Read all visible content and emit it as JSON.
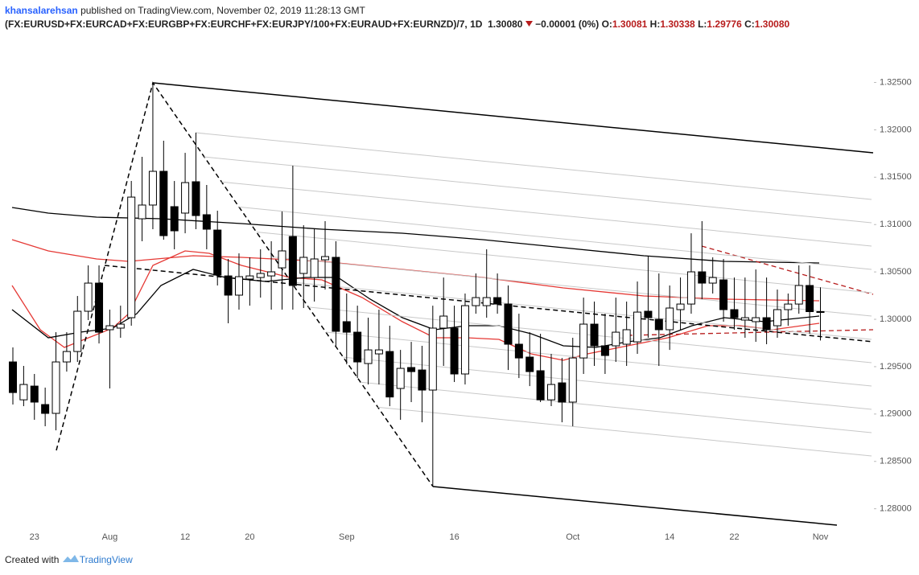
{
  "header": {
    "author": "khansalarehsan",
    "published": "published on TradingView.com, November 02, 2019 11:28:13 GMT",
    "symbol": "(FX:EURUSD+FX:EURCAD+FX:EURGBP+FX:EURCHF+FX:EURJPY/100+FX:EURAUD+FX:EURNZD)/7, 1D",
    "last": "1.30080",
    "change": "−0.00001 (0%)",
    "ohlc": [
      {
        "label": "O:",
        "value": "1.30081"
      },
      {
        "label": "H:",
        "value": "1.30338"
      },
      {
        "label": "L:",
        "value": "1.29776"
      },
      {
        "label": "C:",
        "value": "1.30080"
      }
    ]
  },
  "chart_data": {
    "type": "candlestick",
    "categories": [
      null,
      null,
      "23",
      null,
      null,
      null,
      null,
      null,
      null,
      "Aug",
      null,
      null,
      null,
      null,
      null,
      null,
      "12",
      null,
      null,
      null,
      null,
      null,
      "20",
      null,
      null,
      null,
      null,
      null,
      null,
      null,
      null,
      "Sep",
      null,
      null,
      null,
      null,
      null,
      null,
      null,
      null,
      null,
      "16",
      null,
      null,
      null,
      null,
      null,
      null,
      null,
      null,
      null,
      null,
      "Oct",
      null,
      null,
      null,
      null,
      null,
      null,
      null,
      null,
      "14",
      null,
      null,
      null,
      null,
      null,
      "22",
      null,
      null,
      null,
      null,
      null,
      null,
      null,
      "Nov"
    ],
    "open": [
      1.2955,
      1.2915,
      1.29295,
      1.291,
      1.29007,
      1.2955,
      1.2966,
      1.30085,
      1.30382,
      1.2989,
      1.29907,
      1.30017,
      1.31061,
      1.31206,
      1.31562,
      1.31189,
      1.31121,
      1.31452,
      1.31104,
      1.30942,
      1.30458,
      1.30255,
      1.30425,
      1.30441,
      1.30458,
      1.30543,
      1.30874,
      1.30484,
      1.30441,
      1.30628,
      1.30654,
      1.29975,
      1.29864,
      1.29533,
      1.29635,
      1.2966,
      1.2927,
      1.29491,
      1.29465,
      1.29253,
      1.29907,
      1.29907,
      1.29423,
      1.30144,
      1.30144,
      1.30229,
      1.30161,
      1.29737,
      1.29601,
      1.29457,
      1.2915,
      1.29329,
      1.29126,
      1.29592,
      1.29949,
      1.2972,
      1.2972,
      1.29737,
      1.29762,
      1.30085,
      1.3,
      1.2989,
      1.30102,
      1.30161,
      1.30501,
      1.30382,
      1.30416,
      1.30102,
      1.29992,
      1.29975,
      1.30017,
      1.29932,
      1.30102,
      1.30161,
      1.30357,
      1.30081
    ],
    "high": [
      1.29703,
      1.29508,
      1.29423,
      1.29279,
      1.29864,
      1.29864,
      1.30246,
      1.30569,
      1.30569,
      1.30102,
      1.30144,
      1.3146,
      1.31715,
      1.325,
      1.31885,
      1.3146,
      1.31757,
      1.3197,
      1.31418,
      1.31146,
      1.30637,
      1.30696,
      1.30654,
      1.30739,
      1.30824,
      1.31138,
      1.31622,
      1.30993,
      1.30951,
      1.31036,
      1.30824,
      1.30272,
      1.30144,
      1.30017,
      1.30102,
      1.29932,
      1.29677,
      1.29762,
      1.2972,
      1.30144,
      1.30441,
      1.30144,
      1.30272,
      1.30484,
      1.30739,
      1.30484,
      1.30357,
      1.30059,
      1.29864,
      1.29847,
      1.29635,
      1.29592,
      1.29805,
      1.30229,
      1.30187,
      1.30059,
      1.30229,
      1.30187,
      1.30399,
      1.30671,
      1.30484,
      1.30357,
      1.30441,
      1.30908,
      1.31036,
      1.30654,
      1.30637,
      1.30441,
      1.30441,
      1.30526,
      1.30441,
      1.30314,
      1.30272,
      1.30569,
      1.30569,
      1.30338
    ],
    "low": [
      1.291,
      1.29083,
      1.28939,
      1.28871,
      1.28828,
      1.29448,
      1.2955,
      1.29992,
      1.29745,
      1.2927,
      1.29805,
      1.29932,
      1.30824,
      1.30951,
      1.3084,
      1.30739,
      1.30908,
      1.30951,
      1.30739,
      1.30357,
      1.29958,
      1.30102,
      1.30144,
      1.30229,
      1.30102,
      1.30102,
      1.30102,
      1.30119,
      1.30187,
      1.30314,
      1.2972,
      1.29525,
      1.2938,
      1.29312,
      1.29312,
      1.29083,
      1.28939,
      1.29126,
      1.28913,
      1.28234,
      1.29508,
      1.29338,
      1.29312,
      1.30059,
      1.30017,
      1.30059,
      1.29465,
      1.2938,
      1.29295,
      1.29126,
      1.29083,
      1.28913,
      1.28871,
      1.29423,
      1.29508,
      1.29423,
      1.2955,
      1.29508,
      1.29635,
      1.29805,
      1.29508,
      1.29677,
      1.2989,
      1.30059,
      1.30212,
      1.30272,
      1.29975,
      1.2989,
      1.29805,
      1.29762,
      1.29737,
      1.29805,
      1.29932,
      1.30059,
      1.29847,
      1.29776
    ],
    "close": [
      1.29227,
      1.29312,
      1.29126,
      1.29007,
      1.2955,
      1.2966,
      1.30085,
      1.30382,
      1.29864,
      1.29932,
      1.29949,
      1.3129,
      1.31206,
      1.31562,
      1.30883,
      1.30934,
      1.31443,
      1.31095,
      1.30951,
      1.30467,
      1.30255,
      1.3045,
      1.30458,
      1.30484,
      1.30501,
      1.30722,
      1.30357,
      1.30654,
      1.30637,
      1.30662,
      1.29873,
      1.29864,
      1.2955,
      1.29677,
      1.29677,
      1.2918,
      1.29482,
      1.29448,
      1.29253,
      1.29907,
      1.30034,
      1.29423,
      1.30144,
      1.30229,
      1.30229,
      1.30161,
      1.29737,
      1.29592,
      1.29448,
      1.2915,
      1.29312,
      1.29126,
      1.29592,
      1.29949,
      1.2972,
      1.29618,
      1.29864,
      1.2989,
      1.30076,
      1.30017,
      1.2989,
      1.30119,
      1.30161,
      1.30501,
      1.30382,
      1.30441,
      1.30102,
      1.30017,
      1.30017,
      1.30017,
      1.2989,
      1.30102,
      1.30161,
      1.30357,
      1.30081,
      1.3008
    ],
    "up_color": "#ffffff",
    "down_color": "#000000",
    "wick_color": "#000000",
    "ylim": [
      1.278,
      1.3262
    ],
    "yticks": [
      {
        "value": 1.28,
        "label": "1.28000"
      },
      {
        "value": 1.285,
        "label": "1.28500"
      },
      {
        "value": 1.29,
        "label": "1.29000"
      },
      {
        "value": 1.295,
        "label": "1.29500"
      },
      {
        "value": 1.3,
        "label": "1.30000"
      },
      {
        "value": 1.305,
        "label": "1.30500"
      },
      {
        "value": 1.31,
        "label": "1.31000"
      },
      {
        "value": 1.315,
        "label": "1.31500"
      },
      {
        "value": 1.32,
        "label": "1.32000"
      },
      {
        "value": 1.325,
        "label": "1.32500"
      }
    ],
    "grid": false
  },
  "footer": {
    "created": "Created with",
    "brand": "TradingView"
  }
}
